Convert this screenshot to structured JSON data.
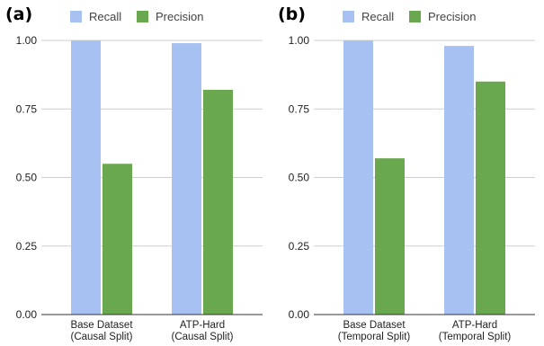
{
  "colors": {
    "recall": "#a7c2f2",
    "precision": "#6aa84f"
  },
  "chart_data": [
    {
      "type": "bar",
      "panel_label": "(a)",
      "categories": [
        [
          "Base Dataset",
          "(Causal Split)"
        ],
        [
          "ATP-Hard",
          "(Causal Split)"
        ]
      ],
      "series": [
        {
          "name": "Recall",
          "values": [
            1.0,
            0.99
          ]
        },
        {
          "name": "Precision",
          "values": [
            0.55,
            0.82
          ]
        }
      ],
      "ylim": [
        0,
        1
      ],
      "yticks": [
        "0.00",
        "0.25",
        "0.50",
        "0.75",
        "1.00"
      ],
      "legend": "top",
      "grid": true
    },
    {
      "type": "bar",
      "panel_label": "(b)",
      "categories": [
        [
          "Base Dataset",
          "(Temporal Split)"
        ],
        [
          "ATP-Hard",
          "(Temporal Split)"
        ]
      ],
      "series": [
        {
          "name": "Recall",
          "values": [
            1.0,
            0.98
          ]
        },
        {
          "name": "Precision",
          "values": [
            0.57,
            0.85
          ]
        }
      ],
      "ylim": [
        0,
        1
      ],
      "yticks": [
        "0.00",
        "0.25",
        "0.50",
        "0.75",
        "1.00"
      ],
      "legend": "top",
      "grid": true
    }
  ]
}
